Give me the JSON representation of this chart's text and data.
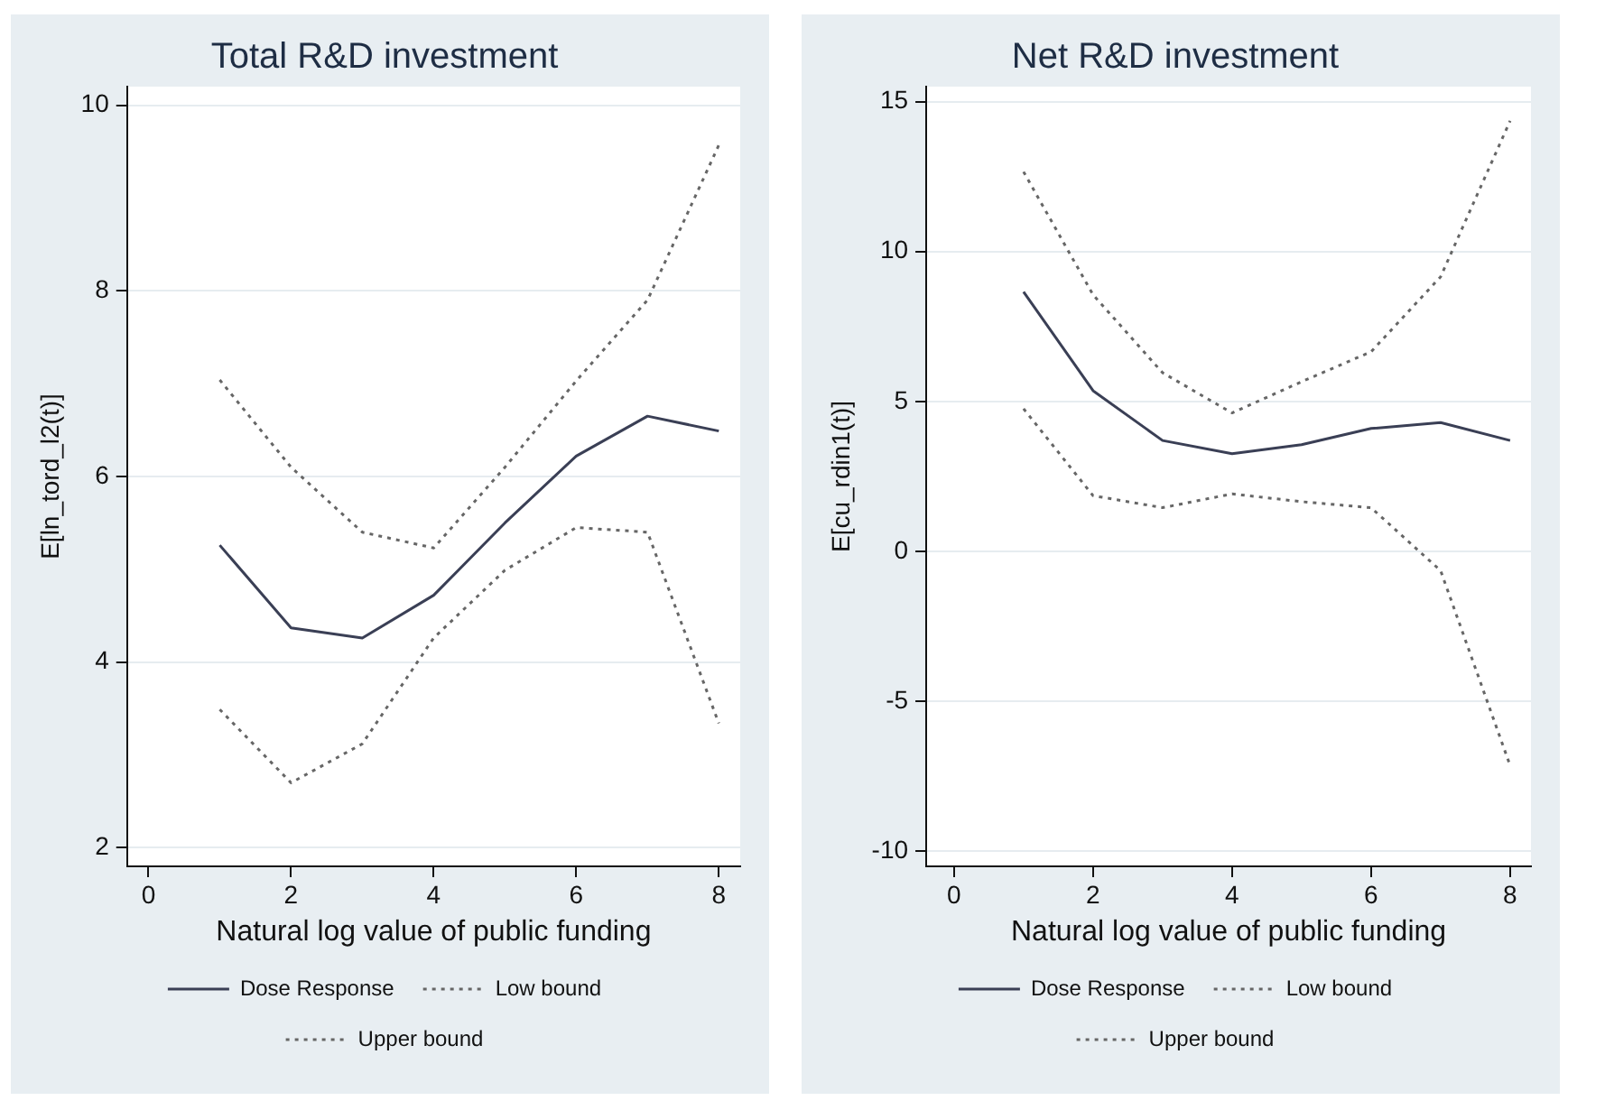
{
  "chart_data": [
    {
      "type": "line",
      "title": "Total R&D investment",
      "xlabel": "Natural log value of public funding",
      "ylabel": "E[ln_tord_l2(t)]",
      "x": [
        1,
        2,
        3,
        4,
        5,
        6,
        7,
        8
      ],
      "series": [
        {
          "name": "Dose Response",
          "color": "#3a3f55",
          "line_style": "solid",
          "values": [
            5.26,
            4.37,
            4.26,
            4.72,
            5.5,
            6.22,
            6.65,
            6.49
          ]
        },
        {
          "name": "Low bound",
          "color": "#666666",
          "line_style": "dashed",
          "values": [
            3.49,
            2.7,
            3.12,
            4.26,
            4.99,
            5.45,
            5.4,
            3.34
          ]
        },
        {
          "name": "Upper bound",
          "color": "#666666",
          "line_style": "dashed",
          "values": [
            7.04,
            6.1,
            5.4,
            5.23,
            6.1,
            7.03,
            7.9,
            9.57
          ]
        }
      ],
      "xlim": [
        -0.3,
        8.3
      ],
      "xticks": [
        0,
        2,
        4,
        6,
        8
      ],
      "ylim": [
        1.8,
        10.2
      ],
      "yticks": [
        2,
        4,
        6,
        8,
        10
      ],
      "grid": "y",
      "legend": "bottom",
      "marker": "none"
    },
    {
      "type": "line",
      "title": "Net R&D investment",
      "xlabel": "Natural log value of public funding",
      "ylabel": "E[cu_rdin1(t)]",
      "x": [
        1,
        2,
        3,
        4,
        5,
        6,
        7,
        8
      ],
      "series": [
        {
          "name": "Dose Response",
          "color": "#3a3f55",
          "line_style": "solid",
          "values": [
            8.66,
            5.36,
            3.7,
            3.26,
            3.56,
            4.1,
            4.3,
            3.7
          ]
        },
        {
          "name": "Low bound",
          "color": "#666666",
          "line_style": "dashed",
          "values": [
            4.76,
            1.86,
            1.46,
            1.92,
            1.66,
            1.46,
            -0.64,
            -7.14
          ]
        },
        {
          "name": "Upper bound",
          "color": "#666666",
          "line_style": "dashed",
          "values": [
            12.66,
            8.56,
            5.96,
            4.62,
            5.66,
            6.66,
            9.16,
            14.36
          ]
        }
      ],
      "xlim": [
        -0.4,
        8.3
      ],
      "xticks": [
        0,
        2,
        4,
        6,
        8
      ],
      "ylim": [
        -10.5,
        15.5
      ],
      "yticks": [
        -10,
        -5,
        0,
        5,
        10,
        15
      ],
      "grid": "y",
      "legend": "bottom",
      "marker": "none"
    }
  ]
}
